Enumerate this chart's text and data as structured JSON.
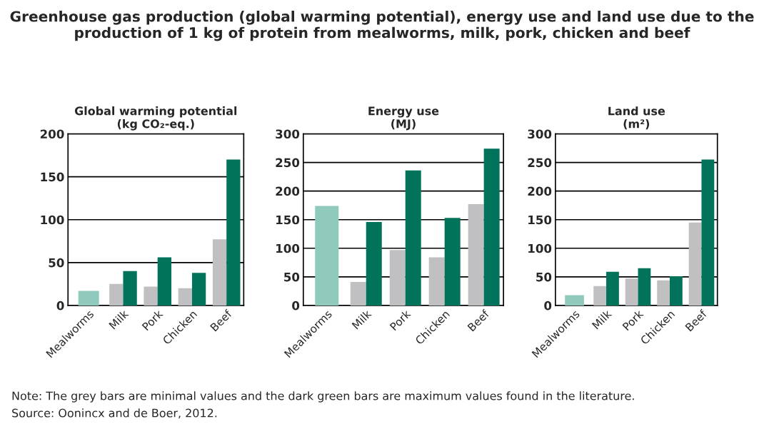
{
  "chart_data": [
    {
      "type": "other",
      "title": "Greenhouse gas production (global warming potential), energy use and land use due to the production of 1 kg of protein from mealworms, milk, pork, chicken and beef",
      "annotations": [
        "Note: The grey bars are minimal values and the dark green bars are maximum values found in the literature.",
        "Source: Oonincx and de Boer, 2012."
      ]
    },
    {
      "type": "bar",
      "title": "Global warming potential\n(kg CO₂-eq.)",
      "categories": [
        "Mealworms",
        "Milk",
        "Pork",
        "Chicken",
        "Beef"
      ],
      "ylim": [
        0,
        200
      ],
      "yticks": [
        0,
        50,
        100,
        150,
        200
      ],
      "grid": "y",
      "legend": false,
      "series": [
        {
          "colors": [
            "#8fcabd",
            "#c0c0c2",
            "#c0c0c2",
            "#c0c0c2",
            "#c0c0c2"
          ],
          "values": [
            17,
            25,
            22,
            20,
            77
          ]
        },
        {
          "color": "#00735a",
          "values": [
            null,
            40,
            56,
            38,
            170
          ]
        }
      ]
    },
    {
      "type": "bar",
      "title": "Energy use\n(MJ)",
      "categories": [
        "Mealworms",
        "Milk",
        "Pork",
        "Chicken",
        "Beef"
      ],
      "ylim": [
        0,
        300
      ],
      "yticks": [
        0,
        50,
        100,
        150,
        200,
        250,
        300
      ],
      "grid": "y",
      "legend": false,
      "series": [
        {
          "colors": [
            "#8fcabd",
            "#c0c0c2",
            "#c0c0c2",
            "#c0c0c2",
            "#c0c0c2"
          ],
          "values": [
            174,
            41,
            97,
            84,
            177
          ]
        },
        {
          "color": "#00735a",
          "values": [
            null,
            146,
            236,
            153,
            274
          ]
        }
      ]
    },
    {
      "type": "bar",
      "title": "Land use\n(m²)",
      "categories": [
        "Mealworms",
        "Milk",
        "Pork",
        "Chicken",
        "Beef"
      ],
      "ylim": [
        0,
        300
      ],
      "yticks": [
        0,
        50,
        100,
        150,
        200,
        250,
        300
      ],
      "grid": "y",
      "legend": false,
      "series": [
        {
          "colors": [
            "#8fcabd",
            "#c0c0c2",
            "#c0c0c2",
            "#c0c0c2",
            "#c0c0c2"
          ],
          "values": [
            18,
            34,
            47,
            44,
            145
          ]
        },
        {
          "color": "#00735a",
          "values": [
            null,
            59,
            65,
            51,
            255
          ]
        }
      ]
    }
  ]
}
